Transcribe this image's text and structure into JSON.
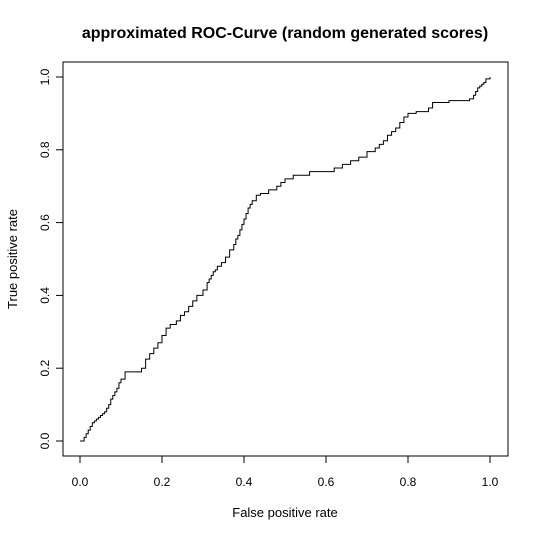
{
  "chart_data": {
    "type": "line",
    "title": "approximated ROC-Curve (random generated scores)",
    "xlabel": "False positive rate",
    "ylabel": "True positive rate",
    "xlim": [
      0.0,
      1.0
    ],
    "ylim": [
      0.0,
      1.0
    ],
    "xticks": [
      "0.0",
      "0.2",
      "0.4",
      "0.6",
      "0.8",
      "1.0"
    ],
    "yticks": [
      "0.0",
      "0.2",
      "0.4",
      "0.6",
      "0.8",
      "1.0"
    ],
    "grid": false,
    "legend": "none",
    "x": [
      0.0,
      0.01,
      0.015,
      0.02,
      0.025,
      0.03,
      0.035,
      0.04,
      0.045,
      0.05,
      0.055,
      0.06,
      0.065,
      0.07,
      0.075,
      0.08,
      0.085,
      0.09,
      0.095,
      0.1,
      0.11,
      0.125,
      0.15,
      0.16,
      0.17,
      0.18,
      0.19,
      0.2,
      0.21,
      0.22,
      0.235,
      0.245,
      0.255,
      0.265,
      0.275,
      0.285,
      0.3,
      0.31,
      0.315,
      0.32,
      0.325,
      0.33,
      0.335,
      0.345,
      0.355,
      0.365,
      0.375,
      0.38,
      0.385,
      0.39,
      0.395,
      0.4,
      0.405,
      0.41,
      0.415,
      0.42,
      0.43,
      0.44,
      0.46,
      0.48,
      0.49,
      0.5,
      0.52,
      0.56,
      0.6,
      0.62,
      0.64,
      0.66,
      0.68,
      0.7,
      0.72,
      0.73,
      0.74,
      0.75,
      0.76,
      0.77,
      0.78,
      0.79,
      0.8,
      0.82,
      0.85,
      0.86,
      0.9,
      0.95,
      0.96,
      0.965,
      0.97,
      0.975,
      0.98,
      0.985,
      0.99,
      1.0
    ],
    "y": [
      0.0,
      0.01,
      0.02,
      0.03,
      0.04,
      0.05,
      0.055,
      0.06,
      0.065,
      0.07,
      0.075,
      0.08,
      0.09,
      0.1,
      0.115,
      0.125,
      0.135,
      0.145,
      0.16,
      0.17,
      0.19,
      0.19,
      0.2,
      0.225,
      0.24,
      0.255,
      0.27,
      0.29,
      0.31,
      0.32,
      0.33,
      0.345,
      0.355,
      0.37,
      0.385,
      0.4,
      0.415,
      0.435,
      0.445,
      0.455,
      0.465,
      0.47,
      0.48,
      0.49,
      0.505,
      0.525,
      0.54,
      0.555,
      0.565,
      0.58,
      0.595,
      0.61,
      0.625,
      0.64,
      0.65,
      0.66,
      0.675,
      0.68,
      0.69,
      0.7,
      0.71,
      0.72,
      0.73,
      0.74,
      0.74,
      0.75,
      0.76,
      0.77,
      0.78,
      0.795,
      0.805,
      0.815,
      0.825,
      0.84,
      0.85,
      0.86,
      0.875,
      0.89,
      0.9,
      0.905,
      0.915,
      0.93,
      0.935,
      0.94,
      0.95,
      0.96,
      0.97,
      0.975,
      0.98,
      0.985,
      0.995,
      1.0
    ]
  }
}
